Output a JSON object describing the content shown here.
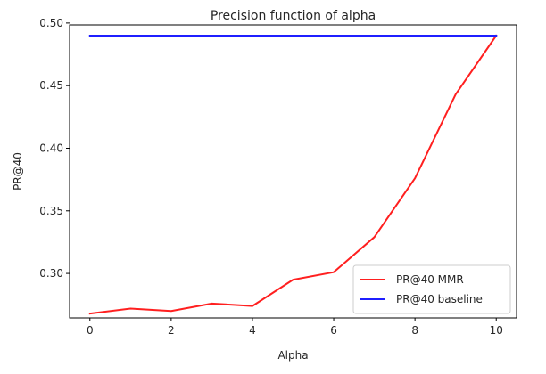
{
  "chart_data": {
    "type": "line",
    "title": "Precision function of alpha",
    "xlabel": "Alpha",
    "ylabel": "PR@40",
    "xlim": [
      -0.5,
      10.5
    ],
    "ylim": [
      0.2645,
      0.4985
    ],
    "xticks": [
      0,
      2,
      4,
      6,
      8,
      10
    ],
    "xtick_labels": [
      "0",
      "2",
      "4",
      "6",
      "8",
      "10"
    ],
    "yticks": [
      0.3,
      0.35,
      0.4,
      0.45,
      0.5
    ],
    "ytick_labels": [
      "0.30",
      "0.35",
      "0.40",
      "0.45",
      "0.50"
    ],
    "grid": false,
    "legend_position": "lower-right",
    "series": [
      {
        "name": "PR@40 MMR",
        "color": "#ff1f1f",
        "x": [
          0,
          1,
          2,
          3,
          4,
          5,
          6,
          7,
          8,
          9,
          10
        ],
        "y": [
          0.268,
          0.272,
          0.27,
          0.276,
          0.274,
          0.295,
          0.301,
          0.329,
          0.376,
          0.443,
          0.49
        ]
      },
      {
        "name": "PR@40 baseline",
        "color": "#1f1fff",
        "x": [
          0,
          10
        ],
        "y": [
          0.49,
          0.49
        ]
      }
    ]
  }
}
